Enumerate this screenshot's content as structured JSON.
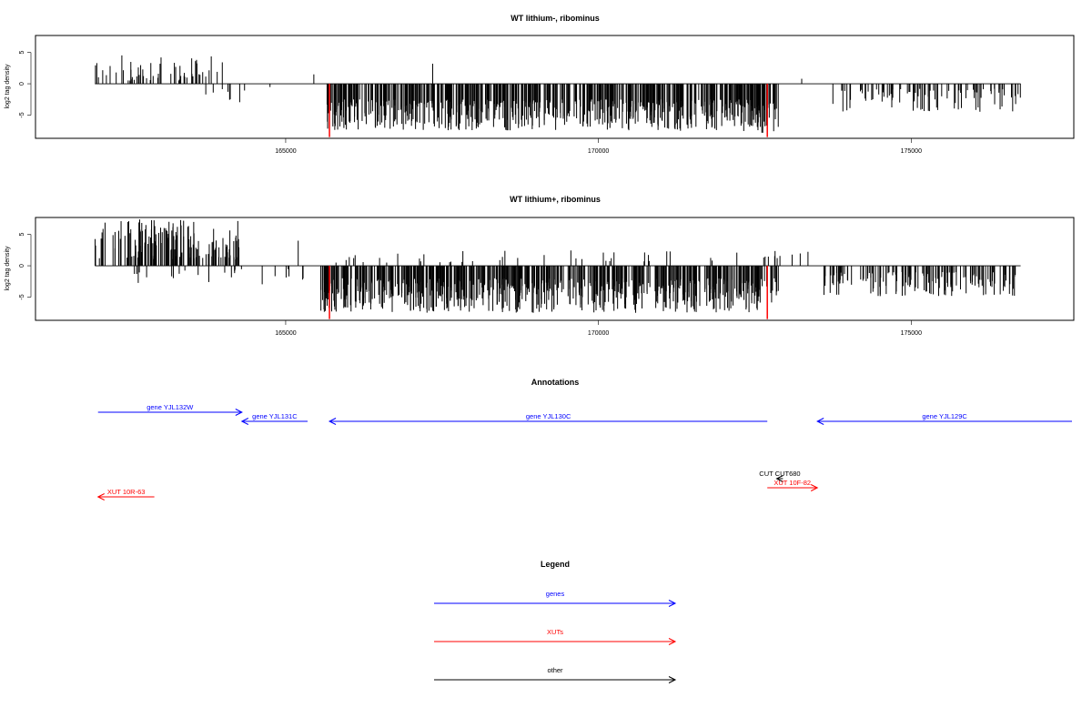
{
  "colors": {
    "bar": "#000000",
    "highlight": "#ff0000",
    "genes": "#0000ff",
    "xuts": "#ff0000",
    "other": "#000000"
  },
  "chart_data": [
    {
      "type": "bar",
      "title": "WT lithium-, ribominus",
      "ylabel": "log2 tag density",
      "xlim": [
        161000,
        177600
      ],
      "ylim": [
        -8.7,
        7.7
      ],
      "yticks": [
        -5,
        0,
        5
      ],
      "xticks": [
        165000,
        170000,
        175000
      ],
      "grid": false,
      "highlight_positions": [
        165700,
        172700
      ],
      "note_values_estimated": true,
      "series": [
        {
          "segments": [
            {
              "x": [
                161950,
                164000
              ],
              "sign": 1,
              "min": 0.5,
              "max": 4.6,
              "count": 55
            },
            {
              "x": [
                163700,
                164800
              ],
              "sign": -1,
              "min": 0.5,
              "max": 3.2,
              "count": 10
            },
            {
              "x": [
                165650,
                172600
              ],
              "sign": -1,
              "min": 2.5,
              "max": 7.5,
              "count": 600
            },
            {
              "x": [
                172300,
                172900
              ],
              "sign": -1,
              "min": 3.0,
              "max": 8.0,
              "count": 35
            },
            {
              "x": [
                173600,
                176750
              ],
              "sign": -1,
              "min": 0.8,
              "max": 4.5,
              "count": 90
            }
          ]
        }
      ],
      "spikes": [
        {
          "x": 167350,
          "y": 3.2
        },
        {
          "x": 165450,
          "y": 1.5
        },
        {
          "x": 173250,
          "y": 0.8
        }
      ]
    },
    {
      "type": "bar",
      "title": "WT lithium+, ribominus",
      "ylabel": "log2 tag density",
      "xlim": [
        161000,
        177600
      ],
      "ylim": [
        -8.7,
        7.7
      ],
      "yticks": [
        -5,
        0,
        5
      ],
      "xticks": [
        165000,
        170000,
        175000
      ],
      "grid": false,
      "highlight_positions": [
        165700,
        172700
      ],
      "note_values_estimated": true,
      "series": [
        {
          "segments": [
            {
              "x": [
                161950,
                164300
              ],
              "sign": 1,
              "min": 1.0,
              "max": 7.5,
              "count": 150
            },
            {
              "x": [
                162200,
                165300
              ],
              "sign": -1,
              "min": 0.5,
              "max": 3.0,
              "count": 25
            },
            {
              "x": [
                165550,
                172600
              ],
              "sign": -1,
              "min": 2.0,
              "max": 7.5,
              "count": 650
            },
            {
              "x": [
                165800,
                172500
              ],
              "sign": 1,
              "min": 0.5,
              "max": 2.5,
              "count": 40
            },
            {
              "x": [
                172300,
                172900
              ],
              "sign": -1,
              "min": 2.0,
              "max": 6.0,
              "count": 25
            },
            {
              "x": [
                172600,
                173400
              ],
              "sign": 1,
              "min": 0.5,
              "max": 2.5,
              "count": 10
            },
            {
              "x": [
                173600,
                176750
              ],
              "sign": -1,
              "min": 1.0,
              "max": 5.0,
              "count": 150
            }
          ]
        }
      ],
      "spikes": [
        {
          "x": 164200,
          "y": 4.5
        },
        {
          "x": 165200,
          "y": 4.0
        }
      ]
    }
  ],
  "annotations": {
    "title": "Annotations",
    "features": [
      {
        "label": "gene YJL132W",
        "type": "genes",
        "start": 162000,
        "end": 164300,
        "row": 0
      },
      {
        "label": "gene YJL131C",
        "type": "genes",
        "start": 165350,
        "end": 164300,
        "row": 1
      },
      {
        "label": "gene YJL130C",
        "type": "genes",
        "start": 172700,
        "end": 165700,
        "row": 1
      },
      {
        "label": "gene YJL129C",
        "type": "genes",
        "start": 177600,
        "end": 173500,
        "row": 1
      },
      {
        "label": "CUT CUT680",
        "type": "other",
        "start": 172950,
        "end": 172850,
        "row": 4
      },
      {
        "label": "XUT 10F-82",
        "type": "xuts",
        "start": 172700,
        "end": 173500,
        "row": 5
      },
      {
        "label": "XUT 10R-63",
        "type": "xuts",
        "start": 162900,
        "end": 162000,
        "row": 6
      }
    ]
  },
  "legend": {
    "title": "Legend",
    "items": [
      {
        "label": "genes",
        "type": "genes"
      },
      {
        "label": "XUTs",
        "type": "xuts"
      },
      {
        "label": "other",
        "type": "other"
      }
    ]
  }
}
